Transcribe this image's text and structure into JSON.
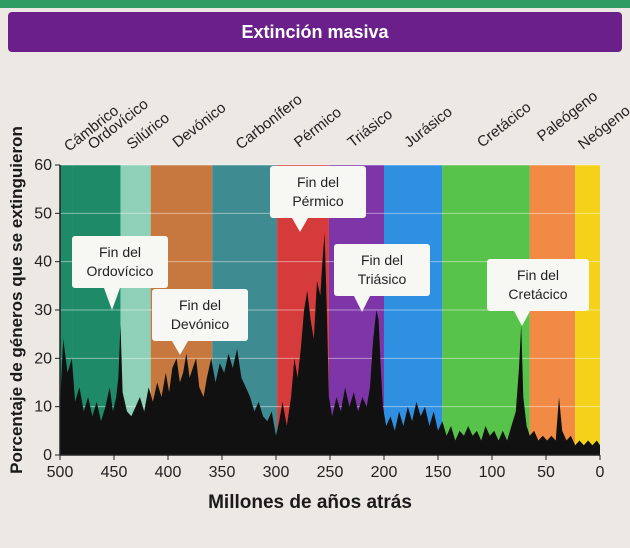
{
  "chart_data": {
    "type": "area",
    "title": "Extinción masiva",
    "xlabel": "Millones de años atrás",
    "ylabel": "Porcentaje de géneros que se extinguieron",
    "xlim": [
      500,
      0
    ],
    "ylim": [
      0,
      60
    ],
    "x_ticks": [
      "500",
      "450",
      "400",
      "350",
      "300",
      "250",
      "200",
      "150",
      "100",
      "50",
      "0"
    ],
    "y_ticks": [
      "0",
      "10",
      "20",
      "30",
      "40",
      "50",
      "60"
    ],
    "grid": true,
    "colors": {
      "title_bar": "#6b1f8a",
      "extinction_area": "#111111"
    },
    "periods": [
      {
        "name": "Cámbrico",
        "start": 500,
        "end": 488,
        "color": "#1e8a67"
      },
      {
        "name": "Ordovícico",
        "start": 488,
        "end": 444,
        "color": "#1e8a67"
      },
      {
        "name": "Silúrico",
        "start": 444,
        "end": 416,
        "color": "#8fd0b8"
      },
      {
        "name": "Devónico",
        "start": 416,
        "end": 359,
        "color": "#c7783e"
      },
      {
        "name": "Carbonífero",
        "start": 359,
        "end": 299,
        "color": "#3f8b92"
      },
      {
        "name": "Pérmico",
        "start": 299,
        "end": 251,
        "color": "#d63b3b"
      },
      {
        "name": "Triásico",
        "start": 251,
        "end": 200,
        "color": "#7d35a8"
      },
      {
        "name": "Jurásico",
        "start": 200,
        "end": 146,
        "color": "#2f8fe0"
      },
      {
        "name": "Cretácico",
        "start": 146,
        "end": 65,
        "color": "#58c34a"
      },
      {
        "name": "Paleógeno",
        "start": 65,
        "end": 23,
        "color": "#f08a45"
      },
      {
        "name": "Neógeno",
        "start": 23,
        "end": 0,
        "color": "#f4d21a"
      }
    ],
    "series": [
      {
        "values": [
          [
            500,
            10
          ],
          [
            497,
            24
          ],
          [
            493,
            17
          ],
          [
            489,
            20
          ],
          [
            486,
            11
          ],
          [
            482,
            14
          ],
          [
            478,
            9
          ],
          [
            474,
            12
          ],
          [
            470,
            8
          ],
          [
            466,
            11
          ],
          [
            462,
            7
          ],
          [
            458,
            10
          ],
          [
            454,
            14
          ],
          [
            451,
            9
          ],
          [
            448,
            12
          ],
          [
            446,
            16
          ],
          [
            444,
            27
          ],
          [
            442,
            13
          ],
          [
            438,
            9
          ],
          [
            434,
            8
          ],
          [
            430,
            10
          ],
          [
            426,
            12
          ],
          [
            422,
            9
          ],
          [
            418,
            14
          ],
          [
            414,
            11
          ],
          [
            410,
            15
          ],
          [
            406,
            12
          ],
          [
            402,
            17
          ],
          [
            399,
            13
          ],
          [
            396,
            18
          ],
          [
            392,
            20
          ],
          [
            389,
            15
          ],
          [
            386,
            17
          ],
          [
            383,
            21
          ],
          [
            380,
            16
          ],
          [
            377,
            18
          ],
          [
            374,
            20
          ],
          [
            371,
            14
          ],
          [
            367,
            12
          ],
          [
            364,
            16
          ],
          [
            360,
            20
          ],
          [
            356,
            15
          ],
          [
            352,
            19
          ],
          [
            348,
            17
          ],
          [
            344,
            21
          ],
          [
            340,
            18
          ],
          [
            336,
            22
          ],
          [
            332,
            16
          ],
          [
            328,
            14
          ],
          [
            324,
            12
          ],
          [
            320,
            9
          ],
          [
            316,
            11
          ],
          [
            312,
            8
          ],
          [
            308,
            7
          ],
          [
            304,
            9
          ],
          [
            300,
            4
          ],
          [
            297,
            7
          ],
          [
            294,
            11
          ],
          [
            290,
            6
          ],
          [
            286,
            12
          ],
          [
            283,
            20
          ],
          [
            280,
            16
          ],
          [
            277,
            22
          ],
          [
            274,
            30
          ],
          [
            271,
            34
          ],
          [
            268,
            28
          ],
          [
            265,
            24
          ],
          [
            262,
            36
          ],
          [
            259,
            33
          ],
          [
            257,
            40
          ],
          [
            255,
            46
          ],
          [
            253,
            30
          ],
          [
            251,
            12
          ],
          [
            248,
            8
          ],
          [
            244,
            12
          ],
          [
            240,
            9
          ],
          [
            236,
            14
          ],
          [
            232,
            10
          ],
          [
            228,
            13
          ],
          [
            224,
            9
          ],
          [
            220,
            12
          ],
          [
            216,
            10
          ],
          [
            213,
            14
          ],
          [
            210,
            24
          ],
          [
            207,
            30
          ],
          [
            205,
            28
          ],
          [
            203,
            18
          ],
          [
            201,
            10
          ],
          [
            198,
            6
          ],
          [
            194,
            8
          ],
          [
            190,
            5
          ],
          [
            186,
            9
          ],
          [
            182,
            6
          ],
          [
            178,
            10
          ],
          [
            174,
            7
          ],
          [
            170,
            11
          ],
          [
            166,
            8
          ],
          [
            162,
            10
          ],
          [
            158,
            6
          ],
          [
            154,
            9
          ],
          [
            150,
            5
          ],
          [
            146,
            7
          ],
          [
            142,
            4
          ],
          [
            138,
            6
          ],
          [
            134,
            3
          ],
          [
            130,
            5
          ],
          [
            126,
            4
          ],
          [
            122,
            6
          ],
          [
            118,
            4
          ],
          [
            114,
            5
          ],
          [
            110,
            3
          ],
          [
            106,
            6
          ],
          [
            102,
            4
          ],
          [
            98,
            5
          ],
          [
            94,
            3
          ],
          [
            90,
            5
          ],
          [
            86,
            3
          ],
          [
            82,
            6
          ],
          [
            78,
            9
          ],
          [
            75,
            18
          ],
          [
            73,
            27
          ],
          [
            71,
            12
          ],
          [
            68,
            6
          ],
          [
            65,
            4
          ],
          [
            61,
            5
          ],
          [
            57,
            3
          ],
          [
            53,
            4
          ],
          [
            49,
            3
          ],
          [
            45,
            4
          ],
          [
            41,
            3
          ],
          [
            38,
            12
          ],
          [
            35,
            5
          ],
          [
            31,
            3
          ],
          [
            27,
            4
          ],
          [
            23,
            2
          ],
          [
            19,
            3
          ],
          [
            15,
            2
          ],
          [
            11,
            3
          ],
          [
            7,
            2
          ],
          [
            3,
            3
          ],
          [
            0,
            2
          ]
        ]
      }
    ],
    "annotations": [
      {
        "text": [
          "Fin del",
          "Ordovícico"
        ],
        "x": 444,
        "y": 27
      },
      {
        "text": [
          "Fin del",
          "Devónico"
        ],
        "x": 367,
        "y": 18
      },
      {
        "text": [
          "Fin del",
          "Pérmico"
        ],
        "x": 251,
        "y": 47
      },
      {
        "text": [
          "Fin del",
          "Triásico"
        ],
        "x": 205,
        "y": 29
      },
      {
        "text": [
          "Fin del",
          "Cretácico"
        ],
        "x": 73,
        "y": 27
      }
    ]
  }
}
